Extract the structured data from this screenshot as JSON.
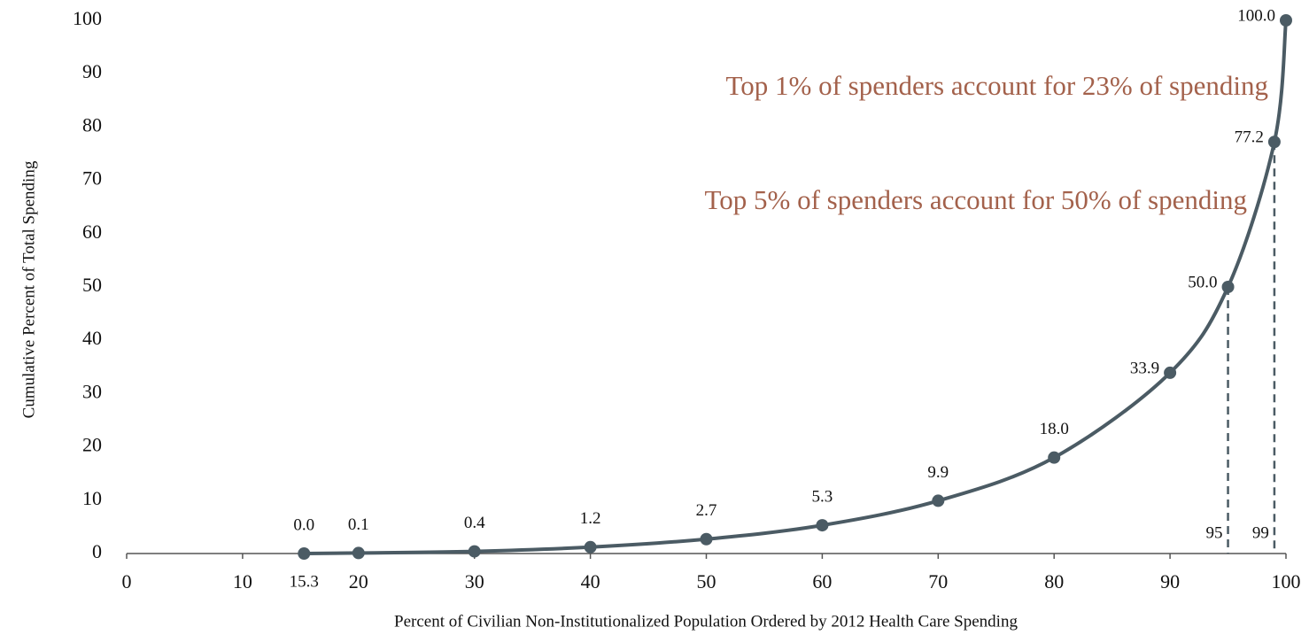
{
  "chart_data": {
    "type": "line",
    "xlabel": "Percent of Civilian Non-Institutionalized Population Ordered by 2012 Health Care Spending",
    "ylabel": "Cumulative Percent of Total Spending",
    "x": [
      15.3,
      20,
      30,
      40,
      50,
      60,
      70,
      80,
      90,
      95,
      99,
      100
    ],
    "x_labels_shown": [
      0,
      9,
      10
    ],
    "series": [
      {
        "name": "Cumulative spending",
        "color": "#4b5b64",
        "values": [
          0,
          0.1,
          0.4,
          1.2,
          2.7,
          5.3,
          9.9,
          18,
          33.9,
          50,
          77.2,
          100
        ],
        "value_labels": [
          "0.0",
          "0.1",
          "0.4",
          "1.2",
          "2.7",
          "5.3",
          "9.9",
          "18.0",
          "33.9",
          "50.0",
          "77.2",
          "100.0"
        ]
      }
    ],
    "annotations": [
      {
        "text": "Top 1% of spenders account for 23% of spending",
        "color": "#a3614b"
      },
      {
        "text": "Top 5% of spenders account for 50% of spending",
        "color": "#a3614b"
      }
    ],
    "xlim": [
      0,
      100
    ],
    "xticks": [
      0,
      10,
      20,
      30,
      40,
      50,
      60,
      70,
      80,
      90,
      100
    ],
    "ylim": [
      0,
      100
    ],
    "yticks": [
      0,
      10,
      20,
      30,
      40,
      50,
      60,
      70,
      80,
      90,
      100
    ],
    "grid": false
  }
}
